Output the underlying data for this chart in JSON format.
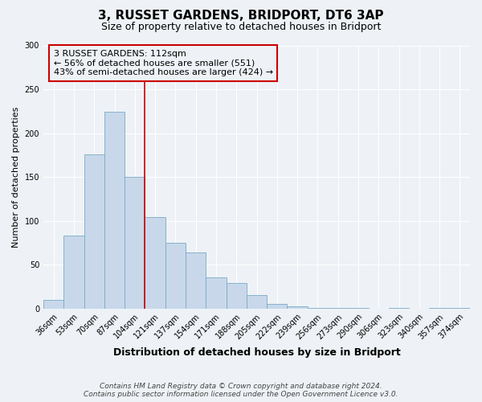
{
  "title": "3, RUSSET GARDENS, BRIDPORT, DT6 3AP",
  "subtitle": "Size of property relative to detached houses in Bridport",
  "xlabel": "Distribution of detached houses by size in Bridport",
  "ylabel": "Number of detached properties",
  "categories": [
    "36sqm",
    "53sqm",
    "70sqm",
    "87sqm",
    "104sqm",
    "121sqm",
    "137sqm",
    "154sqm",
    "171sqm",
    "188sqm",
    "205sqm",
    "222sqm",
    "239sqm",
    "256sqm",
    "273sqm",
    "290sqm",
    "306sqm",
    "323sqm",
    "340sqm",
    "357sqm",
    "374sqm"
  ],
  "values": [
    10,
    83,
    176,
    224,
    150,
    104,
    75,
    64,
    36,
    29,
    15,
    5,
    3,
    1,
    1,
    1,
    0,
    1,
    0,
    1,
    1
  ],
  "bar_color": "#c8d8ea",
  "bar_edge_color": "#7aaac8",
  "bar_width": 1.0,
  "vline_color": "#cc0000",
  "vline_x": 4.5,
  "annotation_box_text": "3 RUSSET GARDENS: 112sqm\n← 56% of detached houses are smaller (551)\n43% of semi-detached houses are larger (424) →",
  "annotation_border_color": "#cc0000",
  "ylim": [
    0,
    300
  ],
  "yticks": [
    0,
    50,
    100,
    150,
    200,
    250,
    300
  ],
  "footer_line1": "Contains HM Land Registry data © Crown copyright and database right 2024.",
  "footer_line2": "Contains public sector information licensed under the Open Government Licence v3.0.",
  "background_color": "#eef2f6",
  "grid_color": "#ffffff",
  "title_fontsize": 11,
  "subtitle_fontsize": 9,
  "xlabel_fontsize": 9,
  "ylabel_fontsize": 8,
  "tick_fontsize": 7,
  "footer_fontsize": 6.5,
  "annotation_fontsize": 8
}
